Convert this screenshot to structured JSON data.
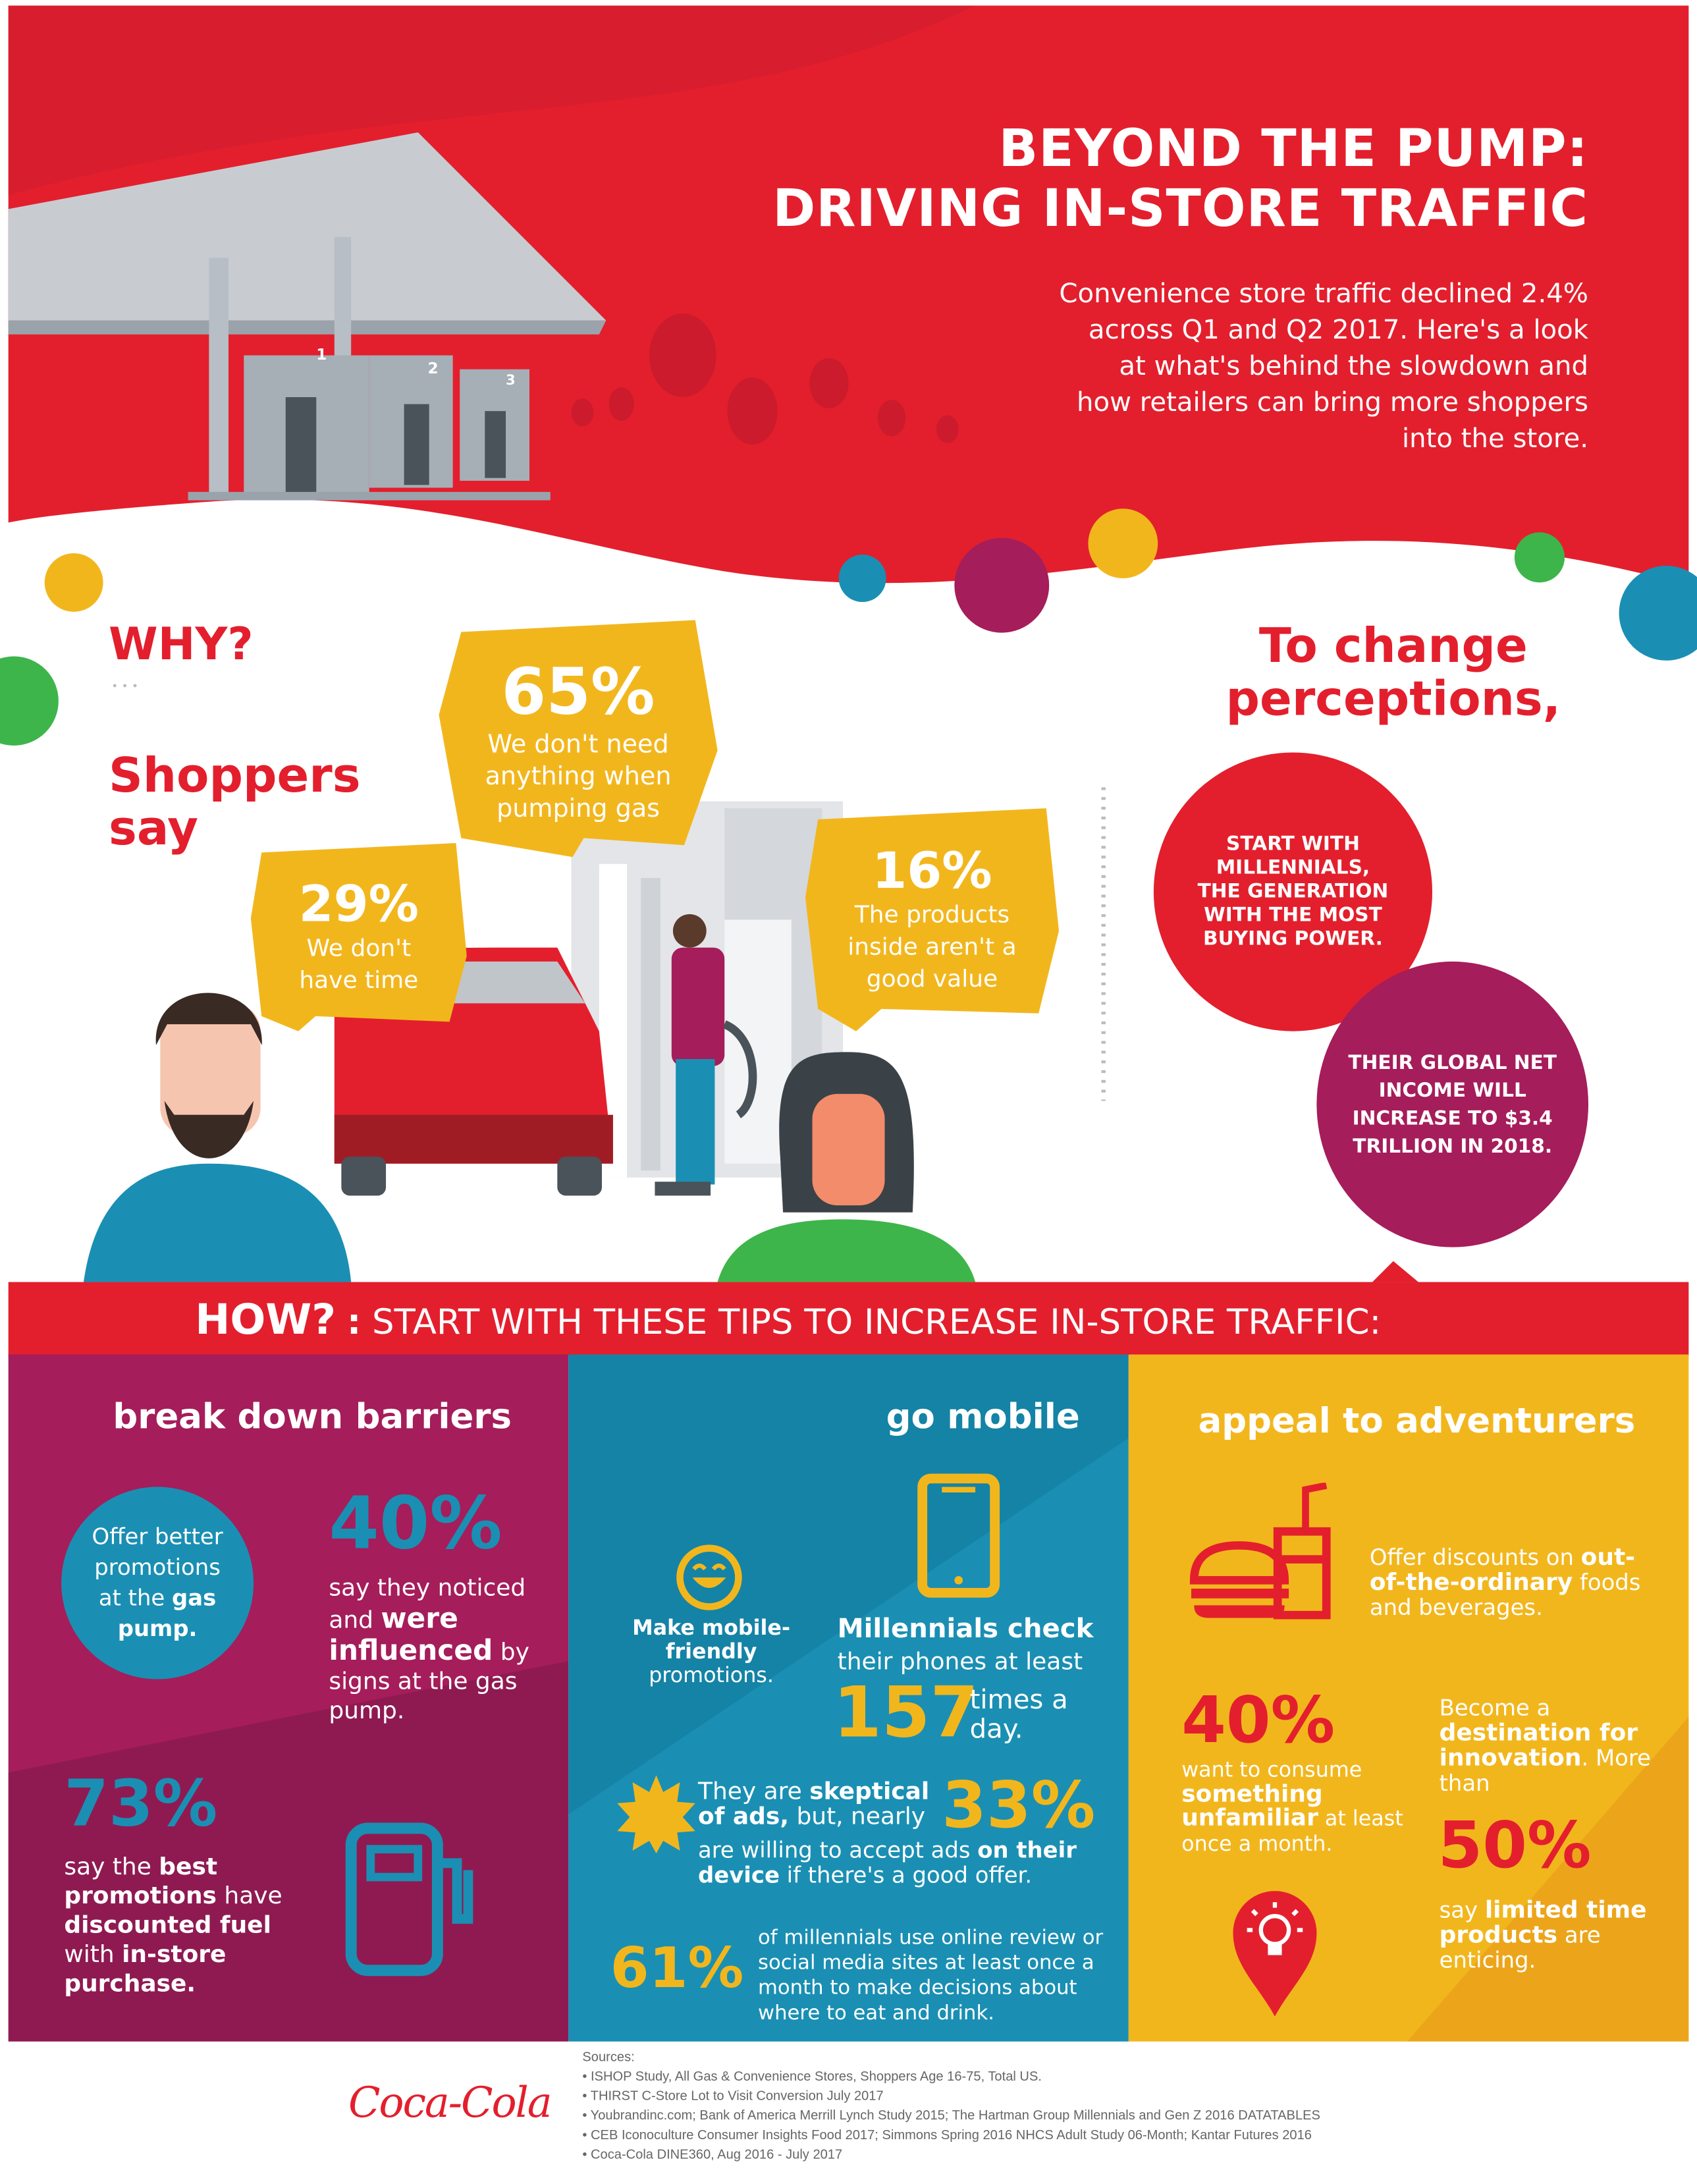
{
  "header": {
    "title_line1": "BEYOND THE PUMP:",
    "title_line2": "DRIVING IN-STORE TRAFFIC",
    "intro": "Convenience store traffic declined 2.4% across Q1 and Q2 2017. Here's a look at what's behind the slowdown and how retailers can bring more shoppers into the store.",
    "pump_numbers": [
      "1",
      "2",
      "3"
    ]
  },
  "why": {
    "heading": "WHY?",
    "dots": "• • •",
    "shoppers_say": "Shoppers say",
    "bubbles": [
      {
        "pct": "65%",
        "text": "We don't need anything when pumping gas"
      },
      {
        "pct": "29%",
        "text": "We don't have time"
      },
      {
        "pct": "16%",
        "text": "The products inside aren't a good value"
      }
    ]
  },
  "perceptions": {
    "heading": "To change perceptions,",
    "circle1": "START WITH MILLENNIALS, THE GENERATION WITH THE MOST BUYING POWER.",
    "circle2": "THEIR GLOBAL NET INCOME WILL INCREASE TO $3.4 TRILLION IN 2018."
  },
  "how": {
    "label": "HOW?",
    "sep": ":",
    "text": "START WITH THESE TIPS TO INCREASE IN-STORE TRAFFIC:"
  },
  "barriers": {
    "heading": "break down barriers",
    "circle_a": "Offer better promotions at the ",
    "circle_b": "gas pump.",
    "pct40": "40%",
    "t40_a": "say they noticed and ",
    "t40_b": "were influenced",
    "t40_c": " by signs at the gas pump.",
    "pct73": "73%",
    "t73_a": "say the ",
    "t73_b": "best promotions",
    "t73_c": " have ",
    "t73_d": "discounted fuel",
    "t73_e": " with ",
    "t73_f": "in-store purchase."
  },
  "mobile": {
    "heading": "go mobile",
    "make_a": "Make mobile-friendly",
    "make_b": "promotions.",
    "check_a": "Millennials check",
    "check_b": "their phones at least",
    "num157": "157",
    "times": "times a day.",
    "sk_a": "They are ",
    "sk_b": "skeptical of ads,",
    "sk_c": " but, nearly",
    "pct33": "33%",
    "sk_d": "are willing to accept ads ",
    "sk_e": "on their device",
    "sk_f": " if there's a good offer.",
    "pct61": "61%",
    "t61": "of millennials use online review or social media sites at least once a month to make decisions about where to eat and drink."
  },
  "adventurers": {
    "heading": "appeal to adventurers",
    "disc_a": "Offer discounts on ",
    "disc_b": "out-of-the-ordinary",
    "disc_c": " foods and beverages.",
    "pct40": "40%",
    "t40_a": "want to consume ",
    "t40_b": "something unfamiliar",
    "t40_c": " at least once a month.",
    "dest_a": "Become a ",
    "dest_b": "destination for innovation",
    "dest_c": ". More than",
    "pct50": "50%",
    "t50_a": "say ",
    "t50_b": "limited time products",
    "t50_c": " are enticing."
  },
  "footer": {
    "logo": "Coca-Cola",
    "sources_label": "Sources:",
    "sources": [
      "• ISHOP Study, All Gas & Convenience Stores, Shoppers Age 16-75, Total US.",
      "• THIRST C-Store Lot to Visit Conversion July 2017",
      "• Youbrandinc.com; Bank of America Merrill Lynch Study 2015; The Hartman Group Millennials and Gen Z 2016 DATATABLES",
      "• CEB Iconoculture Consumer Insights Food 2017; Simmons Spring 2016 NHCS Adult Study 06-Month; Kantar Futures 2016",
      "• Coca-Cola DINE360, Aug 2016 -  July 2017"
    ]
  },
  "colors": {
    "red": "#e31f2d",
    "purple": "#a51d5a",
    "blue": "#1a8fb3",
    "yellow": "#f2b61d",
    "green": "#3db54a"
  }
}
